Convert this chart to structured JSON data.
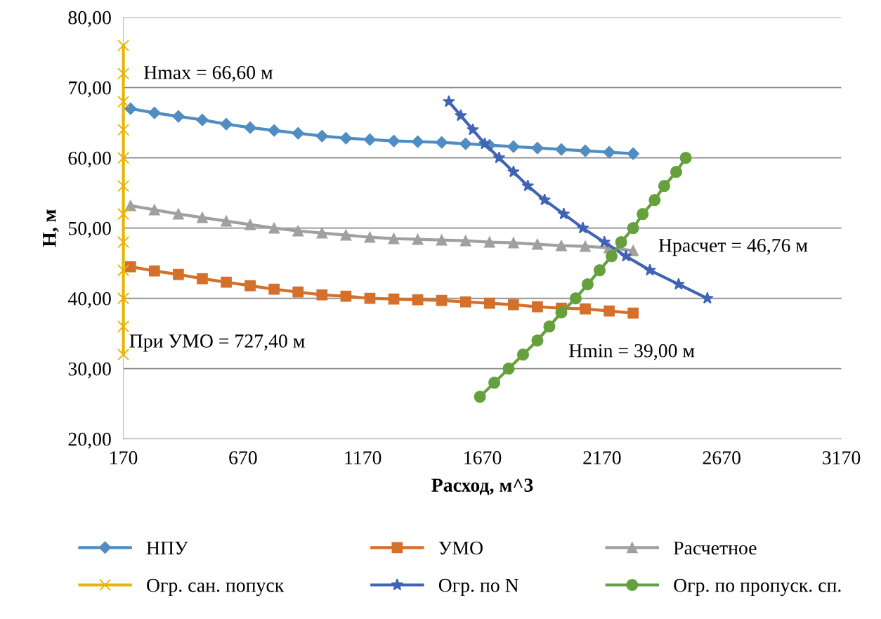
{
  "chart_data": {
    "type": "line",
    "xlabel": "Расход, м^3",
    "ylabel": "H, м",
    "xlim": [
      170,
      3170
    ],
    "xticks": [
      170,
      670,
      1170,
      1670,
      2170,
      2670,
      3170
    ],
    "ylim": [
      20,
      80
    ],
    "yticks": [
      {
        "value": 20,
        "label": "20,00"
      },
      {
        "value": 30,
        "label": "30,00"
      },
      {
        "value": 40,
        "label": "40,00"
      },
      {
        "value": 50,
        "label": "50,00"
      },
      {
        "value": 60,
        "label": "60,00"
      },
      {
        "value": 70,
        "label": "70,00"
      },
      {
        "value": 80,
        "label": "80,00"
      }
    ],
    "grid": "y",
    "legend": "bottom",
    "line_style": "solid",
    "annotations": [
      "Hmax = 66,60 м",
      "Hрасчет = 46,76 м",
      "Hmin = 39,00 м",
      "При УМО = 727,40 м"
    ],
    "series": [
      {
        "name": "НПУ",
        "color": "#4f8dc3",
        "marker": "diamond",
        "x": [
          200,
          300,
          400,
          500,
          600,
          700,
          800,
          900,
          1000,
          1100,
          1200,
          1300,
          1400,
          1500,
          1600,
          1700,
          1800,
          1900,
          2000,
          2100,
          2200,
          2300
        ],
        "values": [
          67.0,
          66.4,
          65.9,
          65.4,
          64.8,
          64.3,
          63.9,
          63.5,
          63.1,
          62.8,
          62.6,
          62.4,
          62.3,
          62.2,
          62.0,
          61.8,
          61.6,
          61.4,
          61.2,
          61.0,
          60.8,
          60.6
        ]
      },
      {
        "name": "УМО",
        "color": "#d4702c",
        "marker": "square",
        "x": [
          200,
          300,
          400,
          500,
          600,
          700,
          800,
          900,
          1000,
          1100,
          1200,
          1300,
          1400,
          1500,
          1600,
          1700,
          1800,
          1900,
          2000,
          2100,
          2200,
          2300
        ],
        "values": [
          44.5,
          43.9,
          43.4,
          42.8,
          42.3,
          41.8,
          41.3,
          40.9,
          40.5,
          40.3,
          40.0,
          39.9,
          39.8,
          39.7,
          39.5,
          39.3,
          39.1,
          38.8,
          38.6,
          38.5,
          38.2,
          37.9
        ]
      },
      {
        "name": "Расчетное",
        "color": "#a0a0a0",
        "marker": "triangle",
        "x": [
          200,
          300,
          400,
          500,
          600,
          700,
          800,
          900,
          1000,
          1100,
          1200,
          1300,
          1400,
          1500,
          1600,
          1700,
          1800,
          1900,
          2000,
          2100,
          2200,
          2300
        ],
        "values": [
          53.2,
          52.6,
          52.0,
          51.5,
          51.0,
          50.5,
          50.0,
          49.6,
          49.3,
          49.0,
          48.7,
          48.5,
          48.4,
          48.3,
          48.2,
          48.0,
          47.9,
          47.7,
          47.5,
          47.4,
          47.2,
          46.8
        ]
      },
      {
        "name": "Огр. сан. попуск",
        "color": "#e8b400",
        "marker": "cross",
        "x": [
          170,
          170,
          170,
          170,
          170,
          170,
          170,
          170,
          170,
          170,
          170,
          170
        ],
        "values": [
          32,
          36,
          40,
          44,
          48,
          52,
          56,
          60,
          64,
          68,
          72,
          76
        ]
      },
      {
        "name": "Огр. по N",
        "color": "#3f64b5",
        "marker": "star",
        "x": [
          1530,
          1580,
          1630,
          1680,
          1740,
          1800,
          1860,
          1930,
          2010,
          2090,
          2180,
          2270,
          2370,
          2490,
          2610
        ],
        "values": [
          68,
          66,
          64,
          62,
          60,
          58,
          56,
          54,
          52,
          50,
          48,
          46,
          44,
          42,
          40
        ]
      },
      {
        "name": "Огр. по пропуск. сп.",
        "color": "#66a03e",
        "marker": "circle",
        "x": [
          1660,
          1720,
          1780,
          1840,
          1900,
          1950,
          2000,
          2060,
          2110,
          2160,
          2210,
          2250,
          2300,
          2340,
          2390,
          2430,
          2480,
          2520
        ],
        "values": [
          26,
          28,
          30,
          32,
          34,
          36,
          38,
          40,
          42,
          44,
          46,
          48,
          50,
          52,
          54,
          56,
          58,
          60
        ]
      }
    ]
  }
}
